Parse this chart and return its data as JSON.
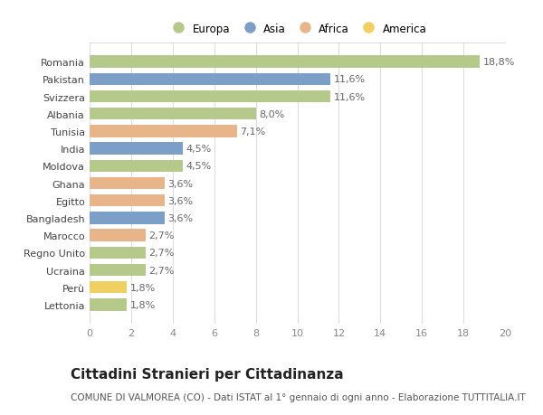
{
  "categories": [
    "Romania",
    "Pakistan",
    "Svizzera",
    "Albania",
    "Tunisia",
    "India",
    "Moldova",
    "Ghana",
    "Egitto",
    "Bangladesh",
    "Marocco",
    "Regno Unito",
    "Ucraina",
    "Perù",
    "Lettonia"
  ],
  "values": [
    18.8,
    11.6,
    11.6,
    8.0,
    7.1,
    4.5,
    4.5,
    3.6,
    3.6,
    3.6,
    2.7,
    2.7,
    2.7,
    1.8,
    1.8
  ],
  "labels": [
    "18,8%",
    "11,6%",
    "11,6%",
    "8,0%",
    "7,1%",
    "4,5%",
    "4,5%",
    "3,6%",
    "3,6%",
    "3,6%",
    "2,7%",
    "2,7%",
    "2,7%",
    "1,8%",
    "1,8%"
  ],
  "continents": [
    "Europa",
    "Asia",
    "Europa",
    "Europa",
    "Africa",
    "Asia",
    "Europa",
    "Africa",
    "Africa",
    "Asia",
    "Africa",
    "Europa",
    "Europa",
    "America",
    "Europa"
  ],
  "colors": {
    "Europa": "#b5c98a",
    "Asia": "#7b9fc7",
    "Africa": "#e8b48a",
    "America": "#f0d060"
  },
  "legend_order": [
    "Europa",
    "Asia",
    "Africa",
    "America"
  ],
  "title": "Cittadini Stranieri per Cittadinanza",
  "subtitle": "COMUNE DI VALMOREA (CO) - Dati ISTAT al 1° gennaio di ogni anno - Elaborazione TUTTITALIA.IT",
  "xlim": [
    0,
    20
  ],
  "xticks": [
    0,
    2,
    4,
    6,
    8,
    10,
    12,
    14,
    16,
    18,
    20
  ],
  "bg_color": "#ffffff",
  "plot_bg_color": "#ffffff",
  "grid_color": "#dddddd",
  "bar_height": 0.7,
  "label_fontsize": 8,
  "ytick_fontsize": 8,
  "xtick_fontsize": 8,
  "title_fontsize": 11,
  "subtitle_fontsize": 7.5
}
